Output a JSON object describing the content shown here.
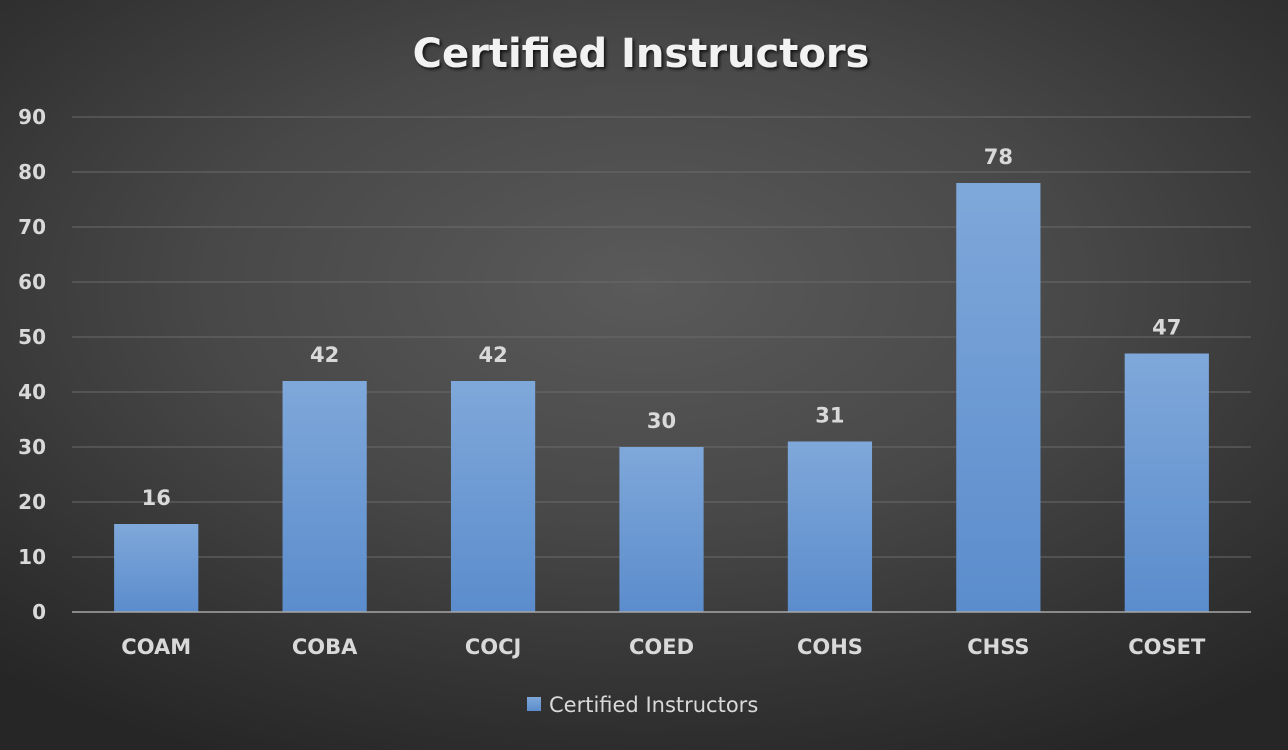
{
  "chart_data": {
    "type": "bar",
    "title": "Certified Instructors",
    "categories": [
      "COAM",
      "COBA",
      "COCJ",
      "COED",
      "COHS",
      "CHSS",
      "COSET"
    ],
    "series": [
      {
        "name": "Certified Instructors",
        "values": [
          16,
          42,
          42,
          30,
          31,
          78,
          47
        ]
      }
    ],
    "data_labels": [
      "16",
      "42",
      "42",
      "30",
      "31",
      "78",
      "47"
    ],
    "ylim": [
      0,
      90
    ],
    "yticks": [
      0,
      10,
      20,
      30,
      40,
      50,
      60,
      70,
      80,
      90
    ],
    "ytick_labels": [
      "0",
      "10",
      "20",
      "30",
      "40",
      "50",
      "60",
      "70",
      "80",
      "90"
    ],
    "xlabel": "",
    "ylabel": "",
    "grid": true,
    "legend": "bottom",
    "colors": {
      "bar_top": "#7fa8da",
      "bar_bottom": "#5b8ccc",
      "gridline": "#6a6a6a",
      "axis": "#a6a6a6",
      "text": "#d9d9d9",
      "title": "#f2f2f2"
    }
  }
}
